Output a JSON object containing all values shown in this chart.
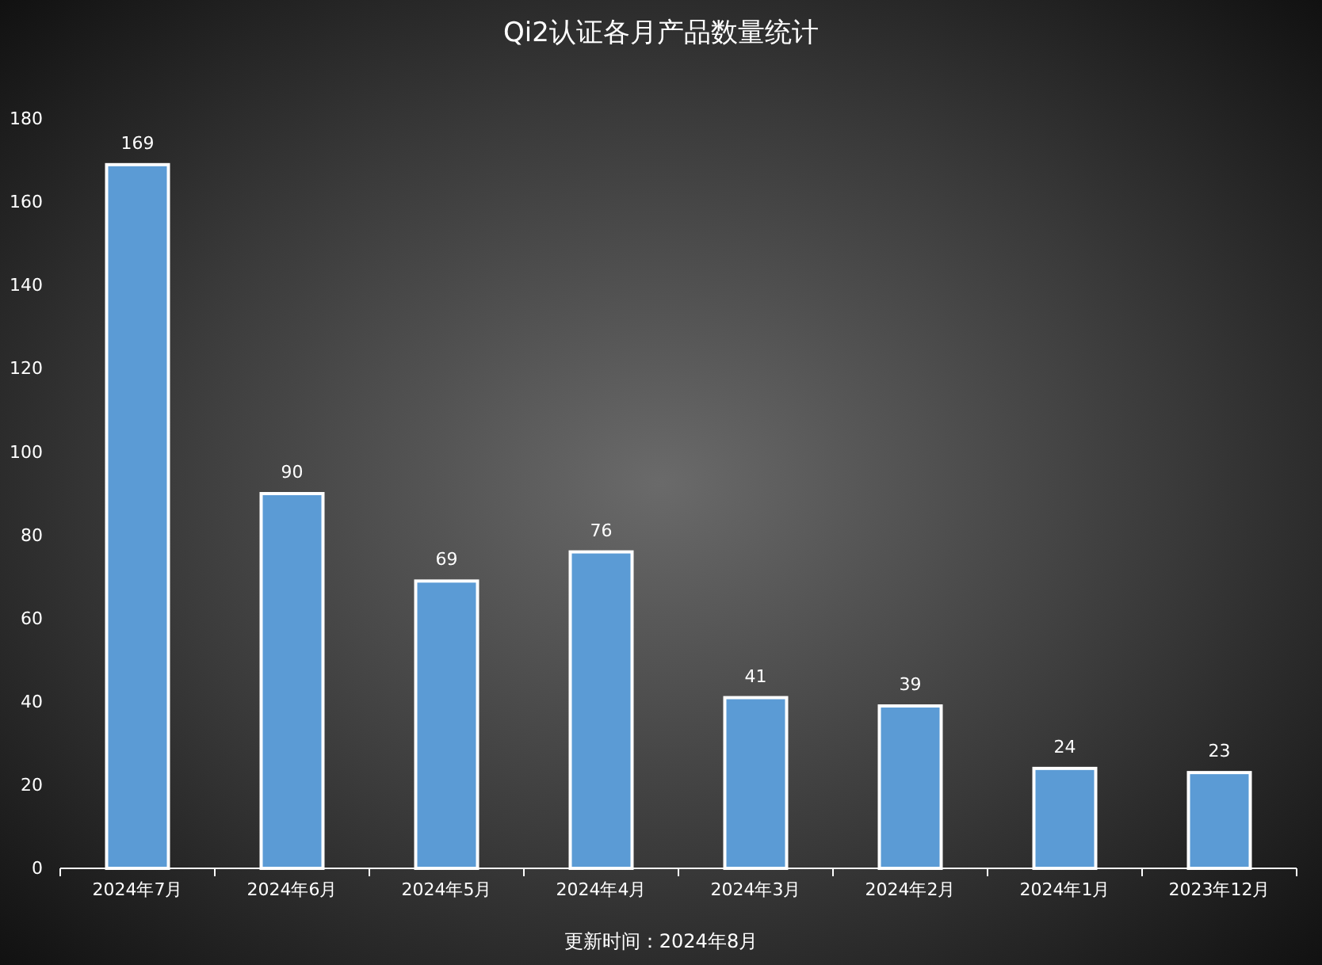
{
  "chart_data": {
    "type": "bar",
    "title": "Qi2认证各月产品数量统计",
    "categories": [
      "2024年7月",
      "2024年6月",
      "2024年5月",
      "2024年4月",
      "2024年3月",
      "2024年2月",
      "2024年1月",
      "2023年12月"
    ],
    "values": [
      169,
      90,
      69,
      76,
      41,
      39,
      24,
      23
    ],
    "color": "#5b9bd5",
    "ylim": [
      0,
      180
    ],
    "yticks": [
      0,
      20,
      40,
      60,
      80,
      100,
      120,
      140,
      160,
      180
    ],
    "grid": false,
    "data_labels": true,
    "annotations": [
      "更新时间：2024年8月"
    ]
  }
}
